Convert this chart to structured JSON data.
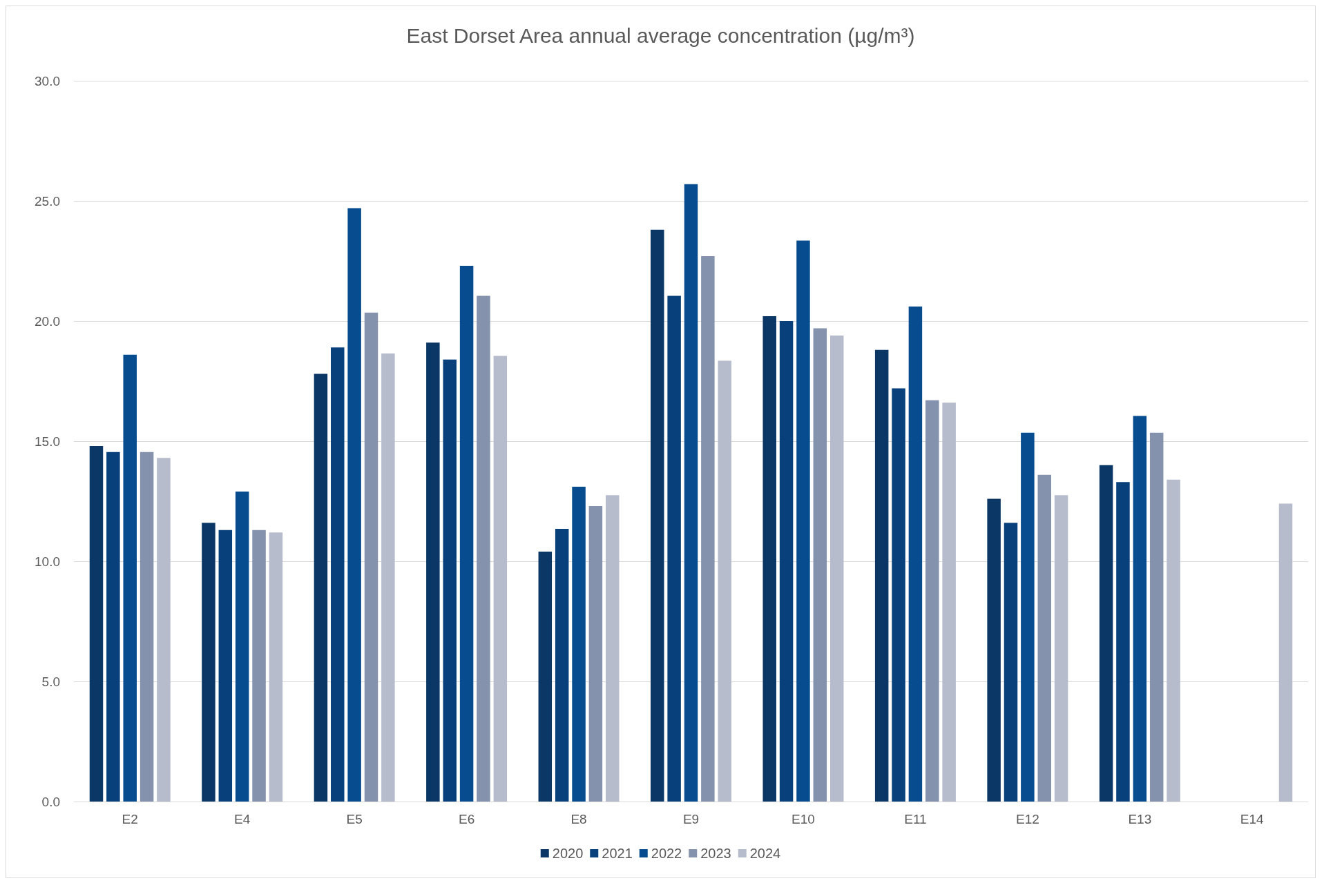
{
  "chart_data": {
    "type": "bar",
    "title": "East Dorset Area annual average concentration (µg/m³)",
    "categories": [
      "E2",
      "E4",
      "E5",
      "E6",
      "E8",
      "E9",
      "E10",
      "E11",
      "E12",
      "E13",
      "E14"
    ],
    "series": [
      {
        "name": "2020",
        "color": "#0b3766",
        "values": [
          14.8,
          11.6,
          17.8,
          19.1,
          10.4,
          23.8,
          20.2,
          18.8,
          12.6,
          14.0,
          null
        ]
      },
      {
        "name": "2021",
        "color": "#08407c",
        "values": [
          14.55,
          11.3,
          18.9,
          18.4,
          11.35,
          21.05,
          20.0,
          17.2,
          11.6,
          13.3,
          null
        ]
      },
      {
        "name": "2022",
        "color": "#064c8f",
        "values": [
          18.6,
          12.9,
          24.7,
          22.3,
          13.1,
          25.7,
          23.35,
          20.6,
          15.35,
          16.05,
          null
        ]
      },
      {
        "name": "2023",
        "color": "#8492ae",
        "values": [
          14.55,
          11.3,
          20.35,
          21.05,
          12.3,
          22.7,
          19.7,
          16.7,
          13.6,
          15.35,
          null
        ]
      },
      {
        "name": "2024",
        "color": "#b7bccd",
        "values": [
          14.3,
          11.2,
          18.65,
          18.55,
          12.75,
          18.35,
          19.4,
          16.6,
          12.75,
          13.4,
          12.4
        ]
      }
    ],
    "ylim": [
      0,
      30
    ],
    "yticks": [
      {
        "value": 0,
        "label": "0.0"
      },
      {
        "value": 5,
        "label": "5.0"
      },
      {
        "value": 10,
        "label": "10.0"
      },
      {
        "value": 15,
        "label": "15.0"
      },
      {
        "value": 20,
        "label": "20.0"
      },
      {
        "value": 25,
        "label": "25.0"
      },
      {
        "value": 30,
        "label": "30.0"
      }
    ],
    "grid": "y",
    "legend": "bottom"
  }
}
